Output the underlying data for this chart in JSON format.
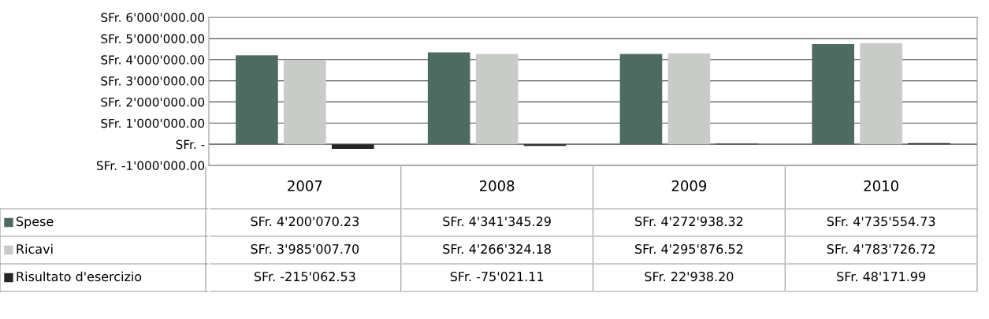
{
  "chart_data": {
    "type": "bar",
    "categories": [
      "2007",
      "2008",
      "2009",
      "2010"
    ],
    "series": [
      {
        "name": "Spese",
        "color": "#4d6b60",
        "values": [
          4200070.23,
          4341345.29,
          4272938.32,
          4735554.73
        ],
        "value_labels": [
          "SFr. 4'200'070.23",
          "SFr. 4'341'345.29",
          "SFr. 4'272'938.32",
          "SFr. 4'735'554.73"
        ]
      },
      {
        "name": "Ricavi",
        "color": "#c9cbc8",
        "values": [
          3985007.7,
          4266324.18,
          4295876.52,
          4783726.72
        ],
        "value_labels": [
          "SFr. 3'985'007.70",
          "SFr. 4'266'324.18",
          "SFr. 4'295'876.52",
          "SFr. 4'783'726.72"
        ]
      },
      {
        "name": "Risultato d'esercizio",
        "color": "#262626",
        "values": [
          -215062.53,
          -75021.11,
          22938.2,
          48171.99
        ],
        "value_labels": [
          "SFr. -215'062.53",
          "SFr. -75'021.11",
          "SFr. 22'938.20",
          "SFr. 48'171.99"
        ]
      }
    ],
    "ylim": [
      -1000000,
      6000000
    ],
    "yticks": [
      {
        "value": -1000000,
        "label": "SFr. -1'000'000.00"
      },
      {
        "value": 0,
        "label": "SFr. -"
      },
      {
        "value": 1000000,
        "label": "SFr. 1'000'000.00"
      },
      {
        "value": 2000000,
        "label": "SFr. 2'000'000.00"
      },
      {
        "value": 3000000,
        "label": "SFr. 3'000'000.00"
      },
      {
        "value": 4000000,
        "label": "SFr. 4'000'000.00"
      },
      {
        "value": 5000000,
        "label": "SFr. 5'000'000.00"
      },
      {
        "value": 6000000,
        "label": "SFr. 6'000'000.00"
      }
    ],
    "grid": "y",
    "legend": "bottom left"
  }
}
